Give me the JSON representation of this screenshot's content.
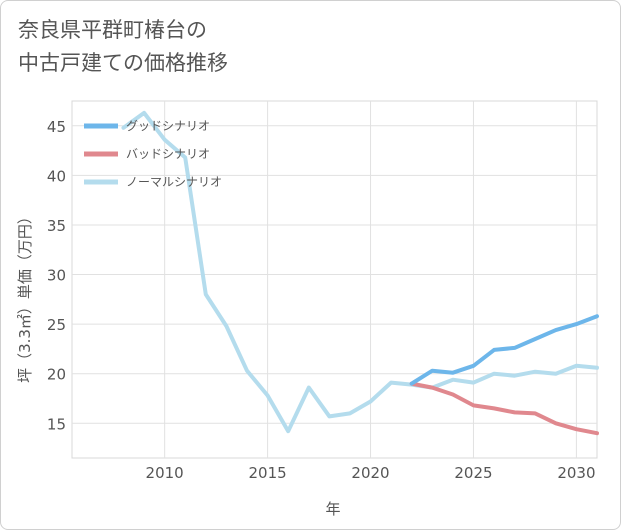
{
  "title": {
    "line1": "奈良県平群町椿台の",
    "line2": "中古戸建ての価格推移"
  },
  "chart_data": {
    "type": "line",
    "title": "奈良県平群町椿台の中古戸建ての価格推移",
    "xlabel": "年",
    "ylabel": "坪（3.3㎡）単価（万円）",
    "xlim": [
      2005.5,
      2031
    ],
    "ylim": [
      11.5,
      47.5
    ],
    "xticks": [
      2010,
      2015,
      2020,
      2025,
      2030
    ],
    "yticks": [
      15,
      20,
      25,
      30,
      35,
      40,
      45
    ],
    "grid": true,
    "legend_position": "top-left",
    "series": [
      {
        "name": "グッドシナリオ",
        "color": "#6db6ea",
        "x": [
          2022,
          2023,
          2024,
          2025,
          2026,
          2027,
          2028,
          2029,
          2030,
          2031
        ],
        "y": [
          19.0,
          20.3,
          20.1,
          20.8,
          22.4,
          22.6,
          23.5,
          24.4,
          25.0,
          25.8
        ]
      },
      {
        "name": "バッドシナリオ",
        "color": "#e0888e",
        "x": [
          2022,
          2023,
          2024,
          2025,
          2026,
          2027,
          2028,
          2029,
          2030,
          2031
        ],
        "y": [
          19.0,
          18.6,
          17.9,
          16.8,
          16.5,
          16.1,
          16.0,
          15.0,
          14.4,
          14.0
        ]
      },
      {
        "name": "ノーマルシナリオ",
        "color": "#b4dced",
        "x": [
          2008,
          2009,
          2010,
          2011,
          2012,
          2013,
          2014,
          2015,
          2016,
          2017,
          2018,
          2019,
          2020,
          2021,
          2022,
          2023,
          2024,
          2025,
          2026,
          2027,
          2028,
          2029,
          2030,
          2031
        ],
        "y": [
          44.8,
          46.3,
          43.6,
          41.8,
          28.0,
          24.8,
          20.3,
          17.8,
          14.2,
          18.6,
          15.7,
          16.0,
          17.2,
          19.1,
          18.9,
          18.6,
          19.4,
          19.1,
          20.0,
          19.8,
          20.2,
          20.0,
          20.8,
          20.6
        ]
      }
    ]
  }
}
